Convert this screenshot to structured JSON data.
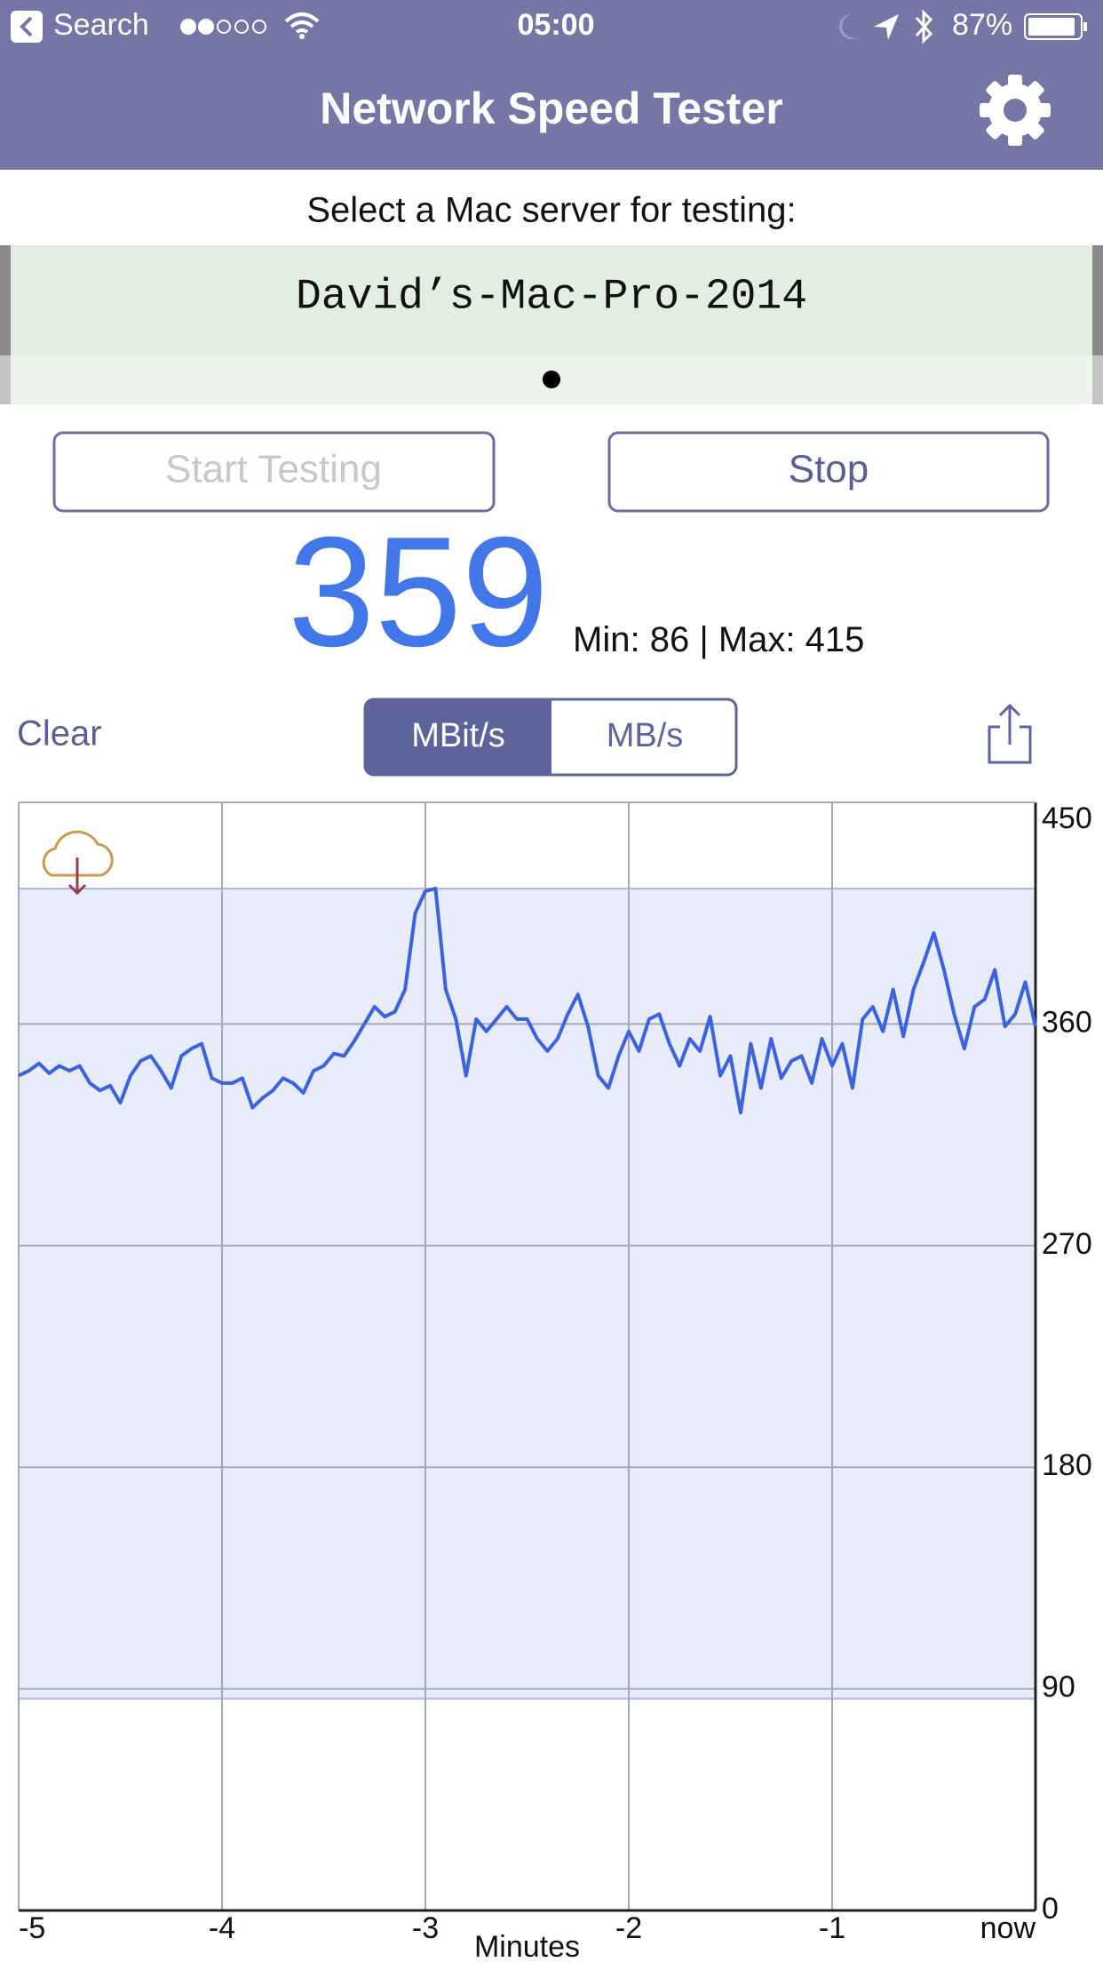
{
  "status_bar": {
    "back": "Search",
    "time": "05:00",
    "battery": "87%"
  },
  "nav": {
    "title": "Network Speed Tester"
  },
  "server": {
    "prompt": "Select a Mac server for testing:",
    "selected": "David’s-Mac-Pro-2014"
  },
  "buttons": {
    "start": "Start Testing",
    "stop": "Stop"
  },
  "reading": {
    "current": 359,
    "min_label": "Min:",
    "min": 86,
    "separator": "|",
    "max_label": "Max:",
    "max": 415
  },
  "controls": {
    "clear": "Clear",
    "units": [
      "MBit/s",
      "MB/s"
    ]
  },
  "chart_data": {
    "type": "line",
    "xlabel": "Minutes",
    "color": "#3b62e0",
    "band_color": "#e8ecfa",
    "band_line_color": "#a9b8ee",
    "x": [
      -5,
      -4.95,
      -4.9,
      -4.85,
      -4.8,
      -4.75,
      -4.7,
      -4.65,
      -4.6,
      -4.55,
      -4.5,
      -4.45,
      -4.4,
      -4.35,
      -4.3,
      -4.25,
      -4.2,
      -4.15,
      -4.1,
      -4.05,
      -4,
      -3.95,
      -3.9,
      -3.85,
      -3.8,
      -3.75,
      -3.7,
      -3.65,
      -3.6,
      -3.55,
      -3.5,
      -3.45,
      -3.4,
      -3.35,
      -3.3,
      -3.25,
      -3.2,
      -3.15,
      -3.1,
      -3.05,
      -3,
      -2.95,
      -2.9,
      -2.85,
      -2.8,
      -2.75,
      -2.7,
      -2.65,
      -2.6,
      -2.55,
      -2.5,
      -2.45,
      -2.4,
      -2.35,
      -2.3,
      -2.25,
      -2.2,
      -2.15,
      -2.1,
      -2.05,
      -2,
      -1.95,
      -1.9,
      -1.85,
      -1.8,
      -1.75,
      -1.7,
      -1.65,
      -1.6,
      -1.55,
      -1.5,
      -1.45,
      -1.4,
      -1.35,
      -1.3,
      -1.25,
      -1.2,
      -1.15,
      -1.1,
      -1.05,
      -1,
      -0.95,
      -0.9,
      -0.85,
      -0.8,
      -0.75,
      -0.7,
      -0.65,
      -0.6,
      -0.55,
      -0.5,
      -0.45,
      -0.4,
      -0.35,
      -0.3,
      -0.25,
      -0.2,
      -0.15,
      -0.1,
      -0.05,
      0
    ],
    "values": [
      339,
      341,
      344,
      340,
      343,
      341,
      343,
      336,
      333,
      335,
      328,
      339,
      345,
      347,
      341,
      334,
      347,
      350,
      352,
      338,
      336,
      336,
      338,
      326,
      330,
      333,
      338,
      336,
      332,
      341,
      343,
      348,
      347,
      353,
      360,
      367,
      363,
      365,
      374,
      405,
      414,
      415,
      374,
      362,
      339,
      362,
      357,
      362,
      367,
      362,
      362,
      354,
      349,
      354,
      364,
      372,
      359,
      339,
      334,
      347,
      357,
      349,
      362,
      364,
      352,
      343,
      354,
      349,
      363,
      339,
      347,
      324,
      352,
      334,
      354,
      338,
      345,
      347,
      336,
      354,
      343,
      352,
      334,
      362,
      367,
      357,
      374,
      355,
      374,
      385,
      397,
      382,
      364,
      350,
      367,
      370,
      382,
      359,
      364,
      377,
      359
    ],
    "xlim": [
      -5,
      0
    ],
    "ylim": [
      0,
      450
    ],
    "xticks": [
      -5,
      -4,
      -3,
      -2,
      -1,
      {
        "value": 0,
        "label": "now"
      }
    ],
    "yticks": [
      0,
      90,
      180,
      270,
      360,
      450
    ],
    "grid": true,
    "y_axis_side": "right"
  }
}
